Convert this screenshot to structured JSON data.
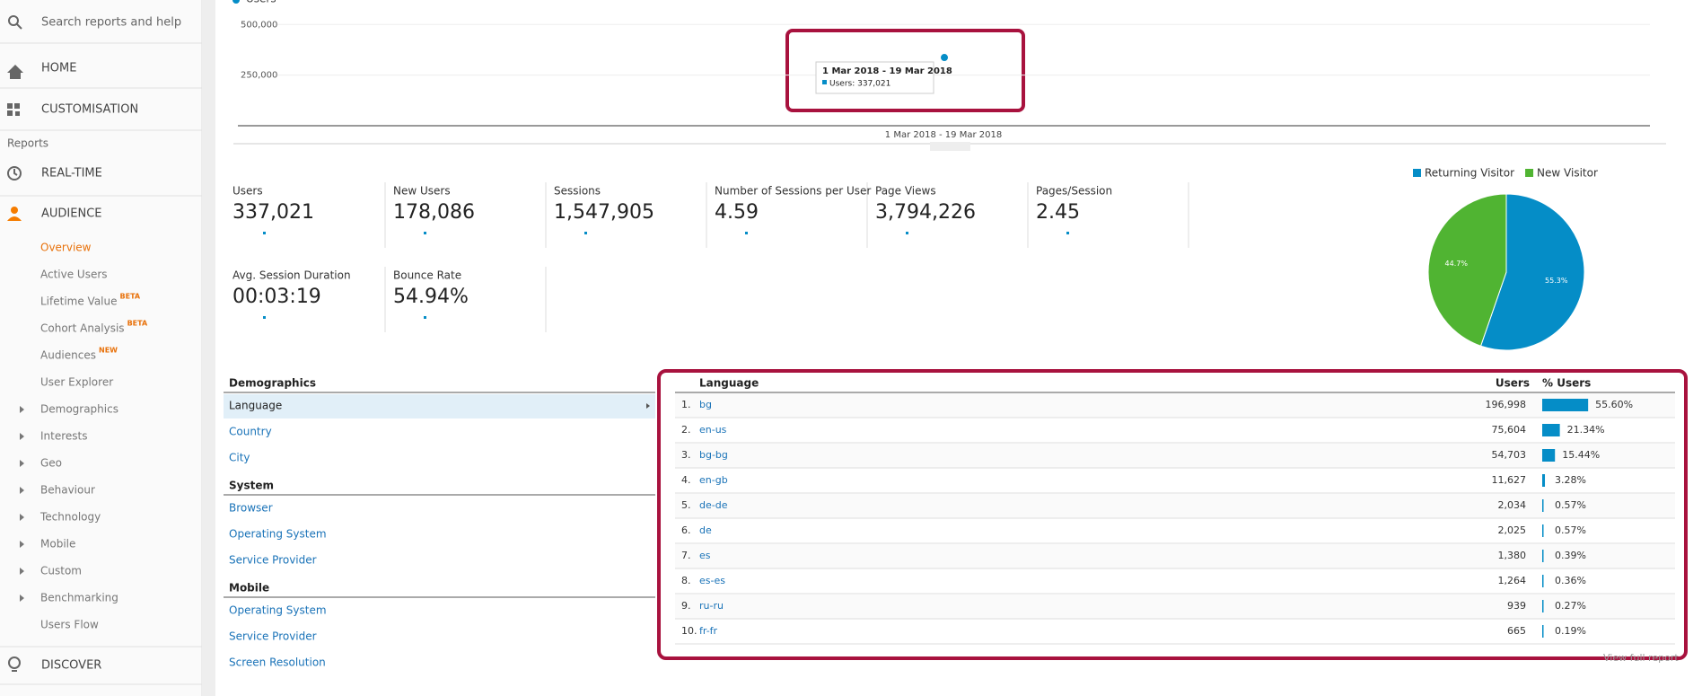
{
  "sidebar": {
    "search": "Search reports and help",
    "nav": [
      "HOME",
      "CUSTOMISATION"
    ],
    "reports_heading": "Reports",
    "sections": [
      "REAL-TIME",
      "AUDIENCE"
    ],
    "audience_items": [
      {
        "label": "Overview"
      },
      {
        "label": "Active Users"
      },
      {
        "label": "Lifetime Value",
        "badge": "BETA"
      },
      {
        "label": "Cohort Analysis",
        "badge": "BETA"
      },
      {
        "label": "Audiences",
        "badge": "NEW"
      },
      {
        "label": "User Explorer"
      },
      {
        "label": "Demographics",
        "expandable": true
      },
      {
        "label": "Interests",
        "expandable": true
      },
      {
        "label": "Geo",
        "expandable": true
      },
      {
        "label": "Behaviour",
        "expandable": true
      },
      {
        "label": "Technology",
        "expandable": true
      },
      {
        "label": "Mobile",
        "expandable": true
      },
      {
        "label": "Custom",
        "expandable": true
      },
      {
        "label": "Benchmarking",
        "expandable": true
      },
      {
        "label": "Users Flow"
      }
    ],
    "discover": "DISCOVER"
  },
  "chart": {
    "legend": "Users",
    "color": "#058dc7",
    "ylim": [
      0,
      550000
    ],
    "yticks": [
      {
        "value": 500000,
        "label": "500,000"
      },
      {
        "value": 250000,
        "label": "250,000"
      }
    ],
    "point": 337021,
    "tooltip": {
      "title": "1 Mar 2018 - 19 Mar 2018",
      "series": "Users: 337,021"
    },
    "x_label": "1 Mar 2018 - 19 Mar 2018"
  },
  "metrics": [
    {
      "label": "Users",
      "value": "337,021"
    },
    {
      "label": "New Users",
      "value": "178,086"
    },
    {
      "label": "Sessions",
      "value": "1,547,905"
    },
    {
      "label": "Number of Sessions per User",
      "value": "4.59"
    },
    {
      "label": "Page Views",
      "value": "3,794,226"
    },
    {
      "label": "Pages/Session",
      "value": "2.45"
    },
    {
      "label": "Avg. Session Duration",
      "value": "00:03:19"
    },
    {
      "label": "Bounce Rate",
      "value": "54.94%"
    }
  ],
  "pie": {
    "type": "pie",
    "series": [
      {
        "name": "Returning Visitor",
        "color": "#058dc7",
        "value": 55.3,
        "label": "55.3%"
      },
      {
        "name": "New Visitor",
        "color": "#50b432",
        "value": 44.7,
        "label": "44.7%"
      }
    ]
  },
  "demographics": {
    "groups": [
      {
        "title": "Demographics",
        "items": [
          "Language",
          "Country",
          "City"
        ]
      },
      {
        "title": "System",
        "items": [
          "Browser",
          "Operating System",
          "Service Provider"
        ]
      },
      {
        "title": "Mobile",
        "items": [
          "Operating System",
          "Service Provider",
          "Screen Resolution"
        ]
      }
    ]
  },
  "table": {
    "columns": [
      "Language",
      "Users",
      "% Users"
    ],
    "rows": [
      {
        "rank": "1.",
        "language": "bg",
        "users": "196,998",
        "share": {
          "value": 55.6,
          "label": "55.60%"
        }
      },
      {
        "rank": "2.",
        "language": "en-us",
        "users": "75,604",
        "share": {
          "value": 21.34,
          "label": "21.34%"
        }
      },
      {
        "rank": "3.",
        "language": "bg-bg",
        "users": "54,703",
        "share": {
          "value": 15.44,
          "label": "15.44%"
        }
      },
      {
        "rank": "4.",
        "language": "en-gb",
        "users": "11,627",
        "share": {
          "value": 3.28,
          "label": "3.28%"
        }
      },
      {
        "rank": "5.",
        "language": "de-de",
        "users": "2,034",
        "share": {
          "value": 0.57,
          "label": "0.57%"
        }
      },
      {
        "rank": "6.",
        "language": "de",
        "users": "2,025",
        "share": {
          "value": 0.57,
          "label": "0.57%"
        }
      },
      {
        "rank": "7.",
        "language": "es",
        "users": "1,380",
        "share": {
          "value": 0.39,
          "label": "0.39%"
        }
      },
      {
        "rank": "8.",
        "language": "es-es",
        "users": "1,264",
        "share": {
          "value": 0.36,
          "label": "0.36%"
        }
      },
      {
        "rank": "9.",
        "language": "ru-ru",
        "users": "939",
        "share": {
          "value": 0.27,
          "label": "0.27%"
        }
      },
      {
        "rank": "10.",
        "language": "fr-fr",
        "users": "665",
        "share": {
          "value": 0.19,
          "label": "0.19%"
        }
      }
    ],
    "footer": "View full report"
  }
}
